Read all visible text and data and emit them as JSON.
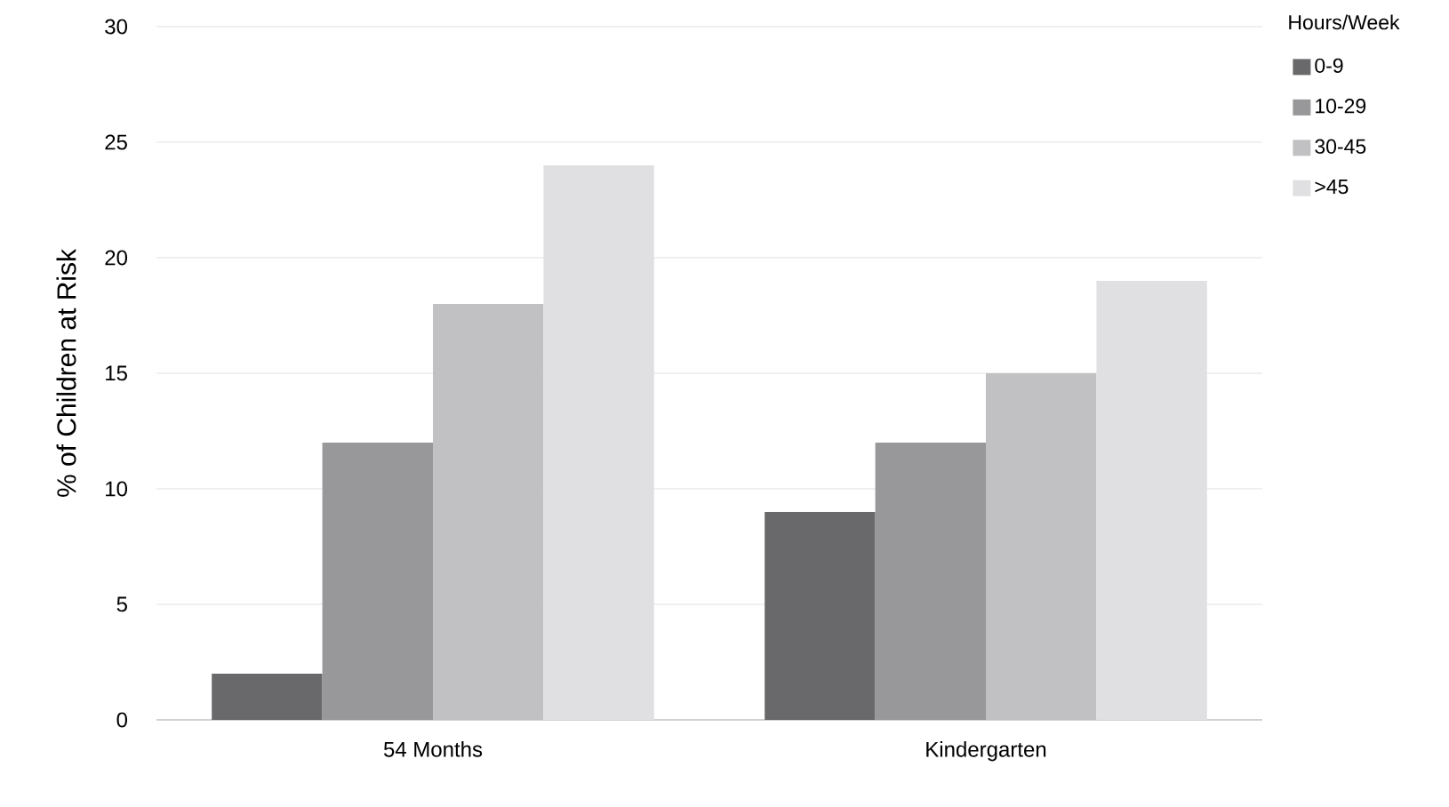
{
  "chart_data": {
    "type": "bar",
    "ylabel": "% of Children at Risk",
    "legend_title": "Hours/Week",
    "categories": [
      "54 Months",
      "Kindergarten"
    ],
    "series": [
      {
        "name": "0-9",
        "color": "#69696b",
        "values": [
          2,
          9
        ]
      },
      {
        "name": "10-29",
        "color": "#98989a",
        "values": [
          12,
          12
        ]
      },
      {
        "name": "30-45",
        "color": "#c1c1c3",
        "values": [
          18,
          15
        ]
      },
      {
        "name": ">45",
        "color": "#e0e0e2",
        "values": [
          24,
          19
        ]
      }
    ],
    "ylim": [
      0,
      30
    ],
    "yticks": [
      0,
      5,
      10,
      15,
      20,
      25,
      30
    ],
    "grid": "y",
    "legend": "top right"
  }
}
